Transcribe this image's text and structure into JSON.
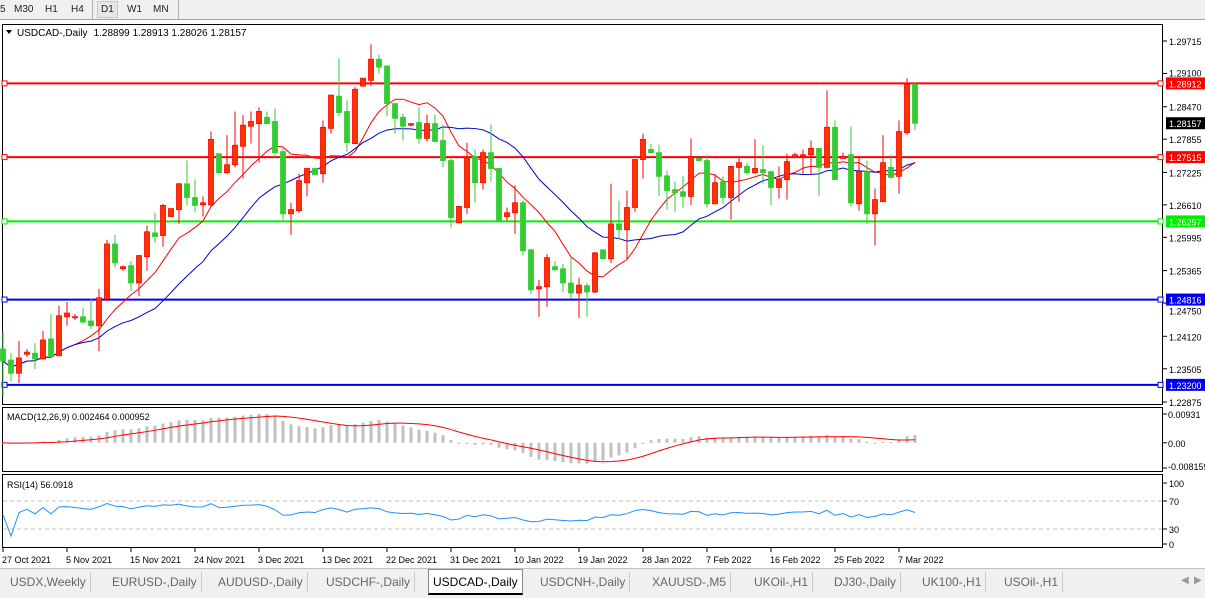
{
  "toolbar": {
    "timeframes": [
      {
        "label": "5",
        "active": false
      },
      {
        "label": "M30",
        "active": false
      },
      {
        "label": "H1",
        "active": false
      },
      {
        "label": "H4",
        "active": false
      },
      {
        "label": "D1",
        "active": true
      },
      {
        "label": "W1",
        "active": false
      },
      {
        "label": "MN",
        "active": false
      }
    ]
  },
  "chart_header": {
    "symbol": "USDCAD-,Daily",
    "ohlc": "1.28899 1.28913 1.28026 1.28157"
  },
  "macd": {
    "label": "MACD(12,26,9) 0.002464 0.000952",
    "ticks": [
      "0.00931",
      "0.00",
      "-0.008159"
    ],
    "range": [
      -0.00815,
      0.00931
    ]
  },
  "rsi": {
    "label": "RSI(14) 56.0918",
    "ticks": [
      "100",
      "70",
      "30",
      "0"
    ],
    "levels": [
      70,
      30
    ]
  },
  "tabs": [
    {
      "label": "USDX,Weekly",
      "active": false
    },
    {
      "label": "EURUSD-,Daily",
      "active": false
    },
    {
      "label": "AUDUSD-,Daily",
      "active": false
    },
    {
      "label": "USDCHF-,Daily",
      "active": false
    },
    {
      "label": "USDCAD-,Daily",
      "active": true
    },
    {
      "label": "USDCNH-,Daily",
      "active": false
    },
    {
      "label": "XAUUSD-,M5",
      "active": false
    },
    {
      "label": "UKOil-,H1",
      "active": false
    },
    {
      "label": "DJ30-,Daily",
      "active": false
    },
    {
      "label": "UK100-,H1",
      "active": false
    },
    {
      "label": "USOil-,H1",
      "active": false
    }
  ],
  "tab_scroll": {
    "left_icon": "chevron-left-icon",
    "right_icon": "chevron-right-icon"
  },
  "colors": {
    "bull": "#ff3300",
    "bull_border": "#ff0000",
    "bear": "#33cc33",
    "ma_fast": "#ff0000",
    "ma_slow": "#0000cc",
    "macd_hist": "#c0c0c0",
    "macd_signal": "#ff0000",
    "rsi": "#1e90ff"
  },
  "chart_data": {
    "type": "candlestick",
    "title": "USDCAD-,Daily",
    "ylim": [
      1.22875,
      1.29715
    ],
    "y_ticks": [
      "1.29715",
      "1.29100",
      "1.28470",
      "1.27855",
      "1.27225",
      "1.26610",
      "1.25995",
      "1.25365",
      "1.24750",
      "1.24120",
      "1.23505",
      "1.22875"
    ],
    "x_ticks": [
      {
        "bar": 0,
        "label": "27 Oct 2021"
      },
      {
        "bar": 8,
        "label": "5 Nov 2021"
      },
      {
        "bar": 16,
        "label": "15 Nov 2021"
      },
      {
        "bar": 24,
        "label": "24 Nov 2021"
      },
      {
        "bar": 32,
        "label": "3 Dec 2021"
      },
      {
        "bar": 40,
        "label": "13 Dec 2021"
      },
      {
        "bar": 48,
        "label": "22 Dec 2021"
      },
      {
        "bar": 56,
        "label": "31 Dec 2021"
      },
      {
        "bar": 64,
        "label": "10 Jan 2022"
      },
      {
        "bar": 72,
        "label": "19 Jan 2022"
      },
      {
        "bar": 80,
        "label": "28 Jan 2022"
      },
      {
        "bar": 88,
        "label": "7 Feb 2022"
      },
      {
        "bar": 96,
        "label": "16 Feb 2022"
      },
      {
        "bar": 104,
        "label": "25 Feb 2022"
      },
      {
        "bar": 112,
        "label": "7 Mar 2022"
      }
    ],
    "current_price": "1.28157",
    "levels": [
      {
        "price": "1.28912",
        "color": "#ff0000"
      },
      {
        "price": "1.27515",
        "color": "#ff0000"
      },
      {
        "price": "1.26297",
        "color": "#00ee00"
      },
      {
        "price": "1.24816",
        "color": "#0000ee"
      },
      {
        "price": "1.23200",
        "color": "#0000ee"
      }
    ],
    "candles": [
      [
        1.2388,
        1.2422,
        1.2298,
        1.2365
      ],
      [
        1.2367,
        1.238,
        1.2327,
        1.2342
      ],
      [
        1.2342,
        1.2403,
        1.2323,
        1.2371
      ],
      [
        1.2378,
        1.2388,
        1.2373,
        1.2382
      ],
      [
        1.238,
        1.2399,
        1.235,
        1.2369
      ],
      [
        1.2369,
        1.2422,
        1.2369,
        1.2405
      ],
      [
        1.2407,
        1.2454,
        1.2373,
        1.2373
      ],
      [
        1.2375,
        1.247,
        1.2375,
        1.2451
      ],
      [
        1.2449,
        1.2477,
        1.2432,
        1.2456
      ],
      [
        1.2449,
        1.2454,
        1.2443,
        1.2449
      ],
      [
        1.2449,
        1.2466,
        1.2435,
        1.2439
      ],
      [
        1.2441,
        1.2483,
        1.2426,
        1.2432
      ],
      [
        1.2432,
        1.2502,
        1.2384,
        1.2485
      ],
      [
        1.2483,
        1.2595,
        1.2479,
        1.2587
      ],
      [
        1.2587,
        1.2604,
        1.2542,
        1.2551
      ],
      [
        1.254,
        1.2546,
        1.2536,
        1.2544
      ],
      [
        1.2546,
        1.2555,
        1.2498,
        1.2513
      ],
      [
        1.2513,
        1.2566,
        1.2488,
        1.2565
      ],
      [
        1.2563,
        1.2622,
        1.2536,
        1.261
      ],
      [
        1.2608,
        1.2646,
        1.2589,
        1.2601
      ],
      [
        1.2603,
        1.2663,
        1.2582,
        1.266
      ],
      [
        1.2639,
        1.2654,
        1.2639,
        1.2654
      ],
      [
        1.2652,
        1.2703,
        1.2625,
        1.2701
      ],
      [
        1.2701,
        1.2745,
        1.266,
        1.2675
      ],
      [
        1.2675,
        1.2709,
        1.2648,
        1.266
      ],
      [
        1.2661,
        1.2677,
        1.2639,
        1.2665
      ],
      [
        1.2661,
        1.28,
        1.2658,
        1.2785
      ],
      [
        1.2758,
        1.2758,
        1.2722,
        1.2722
      ],
      [
        1.2722,
        1.2793,
        1.272,
        1.2737
      ],
      [
        1.2737,
        1.2838,
        1.2732,
        1.2774
      ],
      [
        1.2772,
        1.2831,
        1.2711,
        1.2812
      ],
      [
        1.281,
        1.2838,
        1.2777,
        1.2819
      ],
      [
        1.2815,
        1.2846,
        1.2741,
        1.2838
      ],
      [
        1.2827,
        1.2838,
        1.2815,
        1.2815
      ],
      [
        1.2819,
        1.2844,
        1.2751,
        1.276
      ],
      [
        1.2762,
        1.2768,
        1.2633,
        1.2644
      ],
      [
        1.2644,
        1.2665,
        1.2604,
        1.2652
      ],
      [
        1.265,
        1.272,
        1.2646,
        1.2707
      ],
      [
        1.2703,
        1.273,
        1.2677,
        1.273
      ],
      [
        1.273,
        1.273,
        1.2718,
        1.2718
      ],
      [
        1.272,
        1.2821,
        1.2703,
        1.2808
      ],
      [
        1.2806,
        1.2869,
        1.2796,
        1.2869
      ],
      [
        1.2867,
        1.2939,
        1.2829,
        1.2836
      ],
      [
        1.2838,
        1.2859,
        1.2762,
        1.2779
      ],
      [
        1.2777,
        1.2884,
        1.2777,
        1.288
      ],
      [
        1.2886,
        1.2901,
        1.2886,
        1.2901
      ],
      [
        1.2897,
        1.2965,
        1.2886,
        1.2937
      ],
      [
        1.2937,
        1.2946,
        1.291,
        1.2922
      ],
      [
        1.2924,
        1.2926,
        1.2829,
        1.2853
      ],
      [
        1.2853,
        1.2853,
        1.2796,
        1.2825
      ],
      [
        1.2827,
        1.2834,
        1.2783,
        1.281
      ],
      [
        1.2812,
        1.2815,
        1.281,
        1.2815
      ],
      [
        1.2817,
        1.2846,
        1.2777,
        1.2787
      ],
      [
        1.2787,
        1.2832,
        1.2781,
        1.2815
      ],
      [
        1.2815,
        1.2832,
        1.2781,
        1.2781
      ],
      [
        1.2783,
        1.2813,
        1.2732,
        1.2745
      ],
      [
        1.2745,
        1.2751,
        1.2618,
        1.2637
      ],
      [
        1.2627,
        1.2658,
        1.2627,
        1.2658
      ],
      [
        1.2656,
        1.2779,
        1.2644,
        1.2751
      ],
      [
        1.2753,
        1.2766,
        1.2665,
        1.2703
      ],
      [
        1.2703,
        1.2766,
        1.269,
        1.276
      ],
      [
        1.276,
        1.2813,
        1.2705,
        1.273
      ],
      [
        1.273,
        1.273,
        1.2629,
        1.2629
      ],
      [
        1.2639,
        1.2656,
        1.2631,
        1.2646
      ],
      [
        1.2646,
        1.2698,
        1.2606,
        1.2665
      ],
      [
        1.2665,
        1.2669,
        1.2565,
        1.2574
      ],
      [
        1.2576,
        1.2578,
        1.2492,
        1.25
      ],
      [
        1.2502,
        1.2519,
        1.2449,
        1.2506
      ],
      [
        1.2506,
        1.2568,
        1.2468,
        1.2561
      ],
      [
        1.2544,
        1.2555,
        1.2536,
        1.2538
      ],
      [
        1.254,
        1.2549,
        1.2496,
        1.2513
      ],
      [
        1.2513,
        1.2563,
        1.2483,
        1.2494
      ],
      [
        1.2494,
        1.2523,
        1.2447,
        1.2509
      ],
      [
        1.2508,
        1.2513,
        1.2449,
        1.2496
      ],
      [
        1.2496,
        1.2572,
        1.2494,
        1.257
      ],
      [
        1.2576,
        1.2576,
        1.2559,
        1.2559
      ],
      [
        1.2559,
        1.2701,
        1.2551,
        1.2625
      ],
      [
        1.2625,
        1.2669,
        1.2597,
        1.2614
      ],
      [
        1.2614,
        1.2688,
        1.2557,
        1.2656
      ],
      [
        1.2656,
        1.2747,
        1.2648,
        1.2747
      ],
      [
        1.2747,
        1.2796,
        1.2711,
        1.2785
      ],
      [
        1.2766,
        1.2777,
        1.276,
        1.276
      ],
      [
        1.276,
        1.2775,
        1.2678,
        1.2715
      ],
      [
        1.2716,
        1.2726,
        1.2652,
        1.2688
      ],
      [
        1.269,
        1.2705,
        1.2648,
        1.2684
      ],
      [
        1.2686,
        1.2715,
        1.2656,
        1.2677
      ],
      [
        1.2677,
        1.2787,
        1.2661,
        1.2753
      ],
      [
        1.2749,
        1.2749,
        1.2745,
        1.2745
      ],
      [
        1.2745,
        1.2756,
        1.2656,
        1.2663
      ],
      [
        1.2663,
        1.272,
        1.2663,
        1.2703
      ],
      [
        1.2705,
        1.2715,
        1.2663,
        1.2675
      ],
      [
        1.2675,
        1.2734,
        1.2633,
        1.2734
      ],
      [
        1.2732,
        1.2751,
        1.2667,
        1.2741
      ],
      [
        1.2734,
        1.2741,
        1.2718,
        1.2722
      ],
      [
        1.2722,
        1.2785,
        1.272,
        1.273
      ],
      [
        1.2728,
        1.2774,
        1.2701,
        1.2722
      ],
      [
        1.2724,
        1.2726,
        1.2661,
        1.2694
      ],
      [
        1.2694,
        1.2734,
        1.2673,
        1.2709
      ],
      [
        1.2709,
        1.2758,
        1.2671,
        1.2743
      ],
      [
        1.2751,
        1.276,
        1.2751,
        1.2756
      ],
      [
        1.2753,
        1.2766,
        1.272,
        1.2756
      ],
      [
        1.2756,
        1.2783,
        1.2718,
        1.2768
      ],
      [
        1.2768,
        1.2768,
        1.2678,
        1.2732
      ],
      [
        1.2732,
        1.2878,
        1.2732,
        1.2808
      ],
      [
        1.2808,
        1.2821,
        1.2709,
        1.2709
      ],
      [
        1.2749,
        1.276,
        1.2749,
        1.2753
      ],
      [
        1.2756,
        1.281,
        1.2658,
        1.2665
      ],
      [
        1.2663,
        1.2753,
        1.265,
        1.2724
      ],
      [
        1.2724,
        1.2745,
        1.2625,
        1.2644
      ],
      [
        1.2644,
        1.2692,
        1.2584,
        1.2671
      ],
      [
        1.2667,
        1.2793,
        1.2667,
        1.2741
      ],
      [
        1.2732,
        1.2756,
        1.2711,
        1.2713
      ],
      [
        1.2715,
        1.2821,
        1.2682,
        1.28
      ],
      [
        1.2798,
        1.2901,
        1.2794,
        1.289
      ],
      [
        1.28899,
        1.28913,
        1.28026,
        1.28157
      ]
    ]
  }
}
